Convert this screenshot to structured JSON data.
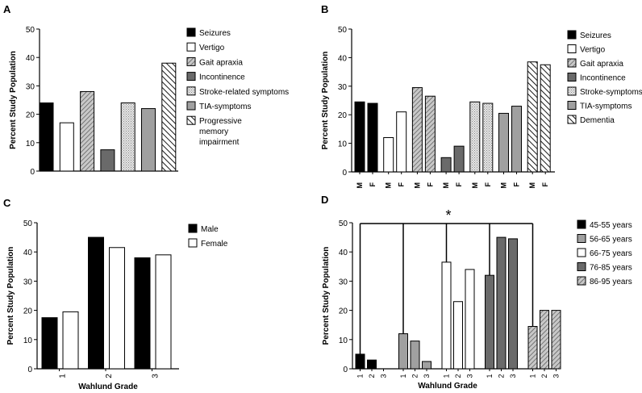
{
  "colors": {
    "black": "#000000",
    "white": "#ffffff",
    "gray": "#a0a0a0",
    "dark_gray": "#6a6a6a",
    "light": "#d8d8d8",
    "hatch": "#ffffff"
  },
  "chart_data": [
    {
      "panel": "A",
      "type": "bar",
      "ylabel": "Percent Study Population",
      "xlabel": "",
      "ylim": [
        0,
        50
      ],
      "yticks": [
        0,
        10,
        20,
        30,
        40,
        50
      ],
      "categories": [
        "Seizures",
        "Vertigo",
        "Gait apraxia",
        "Incontinence",
        "Stroke-related symptoms",
        "TIA-symptoms",
        "Progressive memory impairment"
      ],
      "values": [
        24,
        17,
        28,
        7.5,
        24,
        22,
        38
      ],
      "legend": [
        {
          "label": "Seizures",
          "pattern": "black"
        },
        {
          "label": "Vertigo",
          "pattern": "white"
        },
        {
          "label": "Gait apraxia",
          "pattern": "diag"
        },
        {
          "label": "Incontinence",
          "pattern": "dark"
        },
        {
          "label": "Stroke-related symptoms",
          "pattern": "dots"
        },
        {
          "label": "TIA-symptoms",
          "pattern": "gray"
        },
        {
          "label": "Progressive",
          "pattern": "hatch",
          "extra": [
            "memory",
            "impairment"
          ]
        }
      ]
    },
    {
      "panel": "B",
      "type": "bar",
      "ylabel": "Percent Study Population",
      "xlabel": "",
      "ylim": [
        0,
        50
      ],
      "yticks": [
        0,
        10,
        20,
        30,
        40,
        50
      ],
      "groups": [
        "Seizures",
        "Vertigo",
        "Gait apraxia",
        "Incontinence",
        "Stroke-symptoms",
        "TIA-symptoms",
        "Dementia"
      ],
      "sexes": [
        "M",
        "F"
      ],
      "values": [
        [
          24.5,
          24
        ],
        [
          12,
          21
        ],
        [
          29.5,
          26.5
        ],
        [
          5,
          9
        ],
        [
          24.5,
          24
        ],
        [
          20.5,
          23
        ],
        [
          38.5,
          37.5
        ]
      ],
      "legend": [
        {
          "label": "Seizures",
          "pattern": "black"
        },
        {
          "label": "Vertigo",
          "pattern": "white"
        },
        {
          "label": "Gait apraxia",
          "pattern": "diag"
        },
        {
          "label": "Incontinence",
          "pattern": "dark"
        },
        {
          "label": "Stroke-symptoms",
          "pattern": "dots"
        },
        {
          "label": "TIA-symptoms",
          "pattern": "gray"
        },
        {
          "label": "Dementia",
          "pattern": "hatch"
        }
      ]
    },
    {
      "panel": "C",
      "type": "bar",
      "ylabel": "Percent Study Population",
      "xlabel": "Wahlund Grade",
      "ylim": [
        0,
        50
      ],
      "yticks": [
        0,
        10,
        20,
        30,
        40,
        50
      ],
      "categories": [
        "1",
        "2",
        "3"
      ],
      "series": [
        {
          "name": "Male",
          "pattern": "black",
          "values": [
            17.5,
            45,
            38
          ]
        },
        {
          "name": "Female",
          "pattern": "white",
          "values": [
            19.5,
            41.5,
            39
          ]
        }
      ]
    },
    {
      "panel": "D",
      "type": "bar",
      "ylabel": "Percent Study Population",
      "xlabel": "Wahlund Grade",
      "ylim": [
        0,
        50
      ],
      "yticks": [
        0,
        10,
        20,
        30,
        40,
        50
      ],
      "significance": "*",
      "grades": [
        "1",
        "2",
        "3"
      ],
      "series": [
        {
          "name": "45-55 years",
          "pattern": "black",
          "values": [
            5,
            3,
            0
          ]
        },
        {
          "name": "56-65 years",
          "pattern": "gray",
          "values": [
            12,
            9.5,
            2.5
          ]
        },
        {
          "name": "66-75 years",
          "pattern": "white",
          "values": [
            36.5,
            23,
            34
          ]
        },
        {
          "name": "76-85 years",
          "pattern": "dark",
          "values": [
            32,
            45,
            44.5
          ]
        },
        {
          "name": "86-95 years",
          "pattern": "diag",
          "values": [
            14.5,
            20,
            20
          ]
        }
      ]
    }
  ]
}
